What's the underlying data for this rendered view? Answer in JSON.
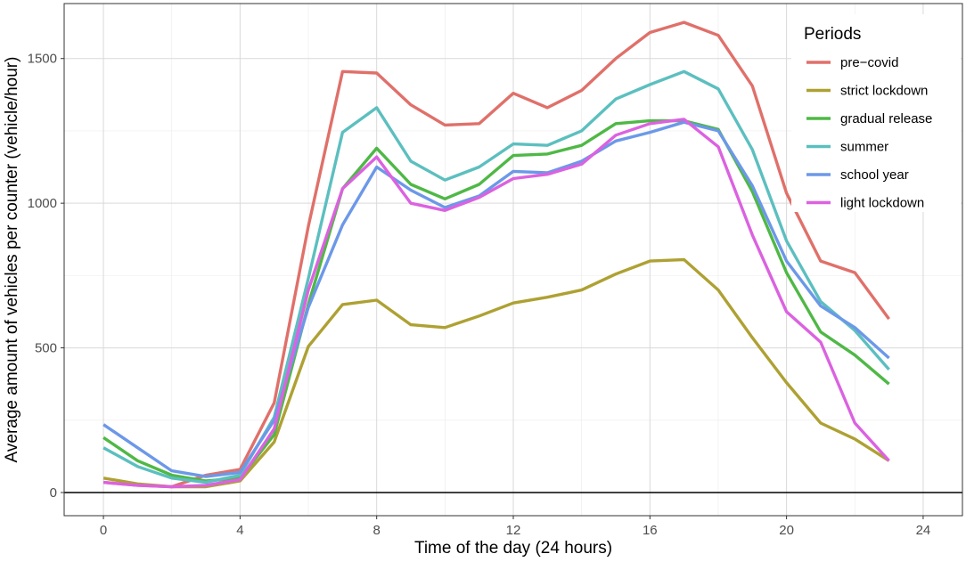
{
  "chart_data": {
    "type": "line",
    "title": "",
    "xlabel": "Time of the day (24 hours)",
    "ylabel": "Average amount of vehicles per counter (vehicle/hour)",
    "xlim": [
      -1.15,
      25.15
    ],
    "ylim": [
      -80,
      1690
    ],
    "x_ticks": [
      0,
      4,
      8,
      12,
      16,
      20,
      24
    ],
    "y_ticks": [
      0,
      500,
      1000,
      1500
    ],
    "grid": true,
    "reference_line_y": 0,
    "legend": {
      "title": "Periods",
      "position": "top-right"
    },
    "x": [
      0,
      1,
      2,
      3,
      4,
      5,
      6,
      7,
      8,
      9,
      10,
      11,
      12,
      13,
      14,
      15,
      16,
      17,
      18,
      19,
      20,
      21,
      22,
      23
    ],
    "series": [
      {
        "name": "pre−covid",
        "color": "#E0706A",
        "values": [
          35,
          25,
          20,
          60,
          80,
          310,
          920,
          1455,
          1450,
          1340,
          1270,
          1275,
          1380,
          1330,
          1390,
          1500,
          1590,
          1625,
          1580,
          1405,
          1035,
          800,
          760,
          600
        ]
      },
      {
        "name": "strict lockdown",
        "color": "#AEA133",
        "values": [
          50,
          30,
          20,
          20,
          40,
          175,
          505,
          650,
          665,
          580,
          570,
          610,
          655,
          675,
          700,
          755,
          800,
          805,
          700,
          535,
          380,
          240,
          185,
          110
        ]
      },
      {
        "name": "gradual release",
        "color": "#4FB846",
        "values": [
          190,
          110,
          60,
          40,
          50,
          200,
          650,
          1050,
          1190,
          1065,
          1015,
          1065,
          1165,
          1170,
          1200,
          1275,
          1285,
          1285,
          1255,
          1040,
          760,
          555,
          475,
          375
        ]
      },
      {
        "name": "summer",
        "color": "#5CBFBF",
        "values": [
          155,
          90,
          50,
          35,
          60,
          260,
          740,
          1245,
          1330,
          1145,
          1080,
          1125,
          1205,
          1200,
          1250,
          1360,
          1410,
          1455,
          1395,
          1185,
          870,
          660,
          560,
          425
        ]
      },
      {
        "name": "school year",
        "color": "#6C98E8",
        "values": [
          235,
          155,
          75,
          55,
          70,
          250,
          640,
          925,
          1125,
          1045,
          985,
          1025,
          1110,
          1105,
          1145,
          1215,
          1245,
          1280,
          1250,
          1060,
          800,
          645,
          570,
          465
        ]
      },
      {
        "name": "light lockdown",
        "color": "#DB62E0",
        "values": [
          35,
          25,
          20,
          25,
          45,
          220,
          700,
          1050,
          1160,
          1000,
          975,
          1020,
          1085,
          1100,
          1135,
          1235,
          1275,
          1290,
          1195,
          890,
          625,
          520,
          240,
          110
        ]
      }
    ]
  }
}
